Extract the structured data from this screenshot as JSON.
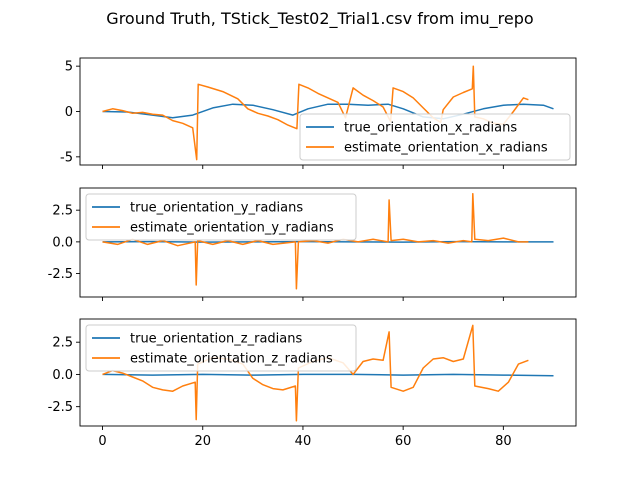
{
  "figure": {
    "title": "Ground Truth, TStick_Test02_Trial1.csv from imu_repo"
  },
  "colors": {
    "true": "#1f77b4",
    "estimate": "#ff7f0e"
  },
  "chart_data": [
    {
      "type": "line",
      "xlim": [
        -4.5,
        94.5
      ],
      "ylim": [
        -5.9,
        5.9
      ],
      "yticks": [
        -5,
        0,
        5
      ],
      "xticks": [
        0,
        20,
        40,
        60,
        80
      ],
      "xtick_labels_visible": false,
      "legend": "lower right",
      "series": [
        {
          "name": "true_orientation_x_radians",
          "color": "#1f77b4",
          "points": [
            [
              0,
              0
            ],
            [
              5,
              -0.05
            ],
            [
              10,
              -0.4
            ],
            [
              14,
              -0.7
            ],
            [
              18,
              -0.4
            ],
            [
              22,
              0.4
            ],
            [
              26,
              0.8
            ],
            [
              30,
              0.7
            ],
            [
              34,
              0.2
            ],
            [
              38,
              -0.4
            ],
            [
              41,
              0.3
            ],
            [
              45,
              0.8
            ],
            [
              49,
              0.8
            ],
            [
              53,
              0.7
            ],
            [
              57,
              0.8
            ],
            [
              60,
              0.3
            ],
            [
              64,
              -0.6
            ],
            [
              68,
              -0.8
            ],
            [
              72,
              -0.3
            ],
            [
              76,
              0.3
            ],
            [
              80,
              0.7
            ],
            [
              84,
              0.8
            ],
            [
              88,
              0.7
            ],
            [
              90,
              0.3
            ]
          ]
        },
        {
          "name": "estimate_orientation_x_radians",
          "color": "#ff7f0e",
          "points": [
            [
              0,
              0
            ],
            [
              2,
              0.3
            ],
            [
              4,
              0.1
            ],
            [
              6,
              -0.2
            ],
            [
              8,
              -0.1
            ],
            [
              10,
              -0.3
            ],
            [
              12,
              -0.4
            ],
            [
              14,
              -1.0
            ],
            [
              16,
              -1.3
            ],
            [
              18,
              -1.8
            ],
            [
              18.8,
              -5.3
            ],
            [
              19.1,
              3.0
            ],
            [
              21,
              2.7
            ],
            [
              24,
              2.2
            ],
            [
              27,
              1.4
            ],
            [
              29,
              0.3
            ],
            [
              31,
              -0.2
            ],
            [
              33,
              -0.5
            ],
            [
              35,
              -0.9
            ],
            [
              37,
              -1.5
            ],
            [
              38.8,
              -1.9
            ],
            [
              39.2,
              3.0
            ],
            [
              41,
              2.6
            ],
            [
              43,
              2.0
            ],
            [
              45,
              1.5
            ],
            [
              47,
              1.0
            ],
            [
              48.5,
              -0.7
            ],
            [
              50,
              2.6
            ],
            [
              52,
              1.8
            ],
            [
              54,
              1.2
            ],
            [
              56,
              0.5
            ],
            [
              57.5,
              -1.1
            ],
            [
              58,
              2.6
            ],
            [
              60,
              2.2
            ],
            [
              62,
              1.5
            ],
            [
              64,
              0.4
            ],
            [
              66,
              -0.7
            ],
            [
              67.5,
              -1.2
            ],
            [
              68,
              0.2
            ],
            [
              70,
              1.6
            ],
            [
              72,
              2.1
            ],
            [
              73.8,
              2.5
            ],
            [
              74,
              5.0
            ],
            [
              74.3,
              -0.6
            ],
            [
              76,
              -0.8
            ],
            [
              78,
              -1.3
            ],
            [
              80,
              -1.4
            ],
            [
              82,
              0.0
            ],
            [
              84,
              1.5
            ],
            [
              85,
              1.3
            ]
          ]
        }
      ]
    },
    {
      "type": "line",
      "xlim": [
        -4.5,
        94.5
      ],
      "ylim": [
        -4.35,
        4.25
      ],
      "yticks": [
        -2.5,
        0.0,
        2.5
      ],
      "xticks": [
        0,
        20,
        40,
        60,
        80
      ],
      "xtick_labels_visible": false,
      "legend": "upper left",
      "series": [
        {
          "name": "true_orientation_y_radians",
          "color": "#1f77b4",
          "points": [
            [
              0,
              0.0
            ],
            [
              10,
              0.02
            ],
            [
              20,
              -0.02
            ],
            [
              30,
              0.0
            ],
            [
              40,
              0.02
            ],
            [
              50,
              0.0
            ],
            [
              60,
              -0.02
            ],
            [
              70,
              0.02
            ],
            [
              80,
              0.0
            ],
            [
              90,
              0.0
            ]
          ]
        },
        {
          "name": "estimate_orientation_y_radians",
          "color": "#ff7f0e",
          "points": [
            [
              0,
              0.0
            ],
            [
              3,
              -0.2
            ],
            [
              6,
              0.2
            ],
            [
              9,
              -0.2
            ],
            [
              12,
              0.1
            ],
            [
              15,
              -0.3
            ],
            [
              18.5,
              0.0
            ],
            [
              18.7,
              -3.4
            ],
            [
              19,
              0.1
            ],
            [
              22,
              -0.2
            ],
            [
              25,
              0.1
            ],
            [
              28,
              -0.2
            ],
            [
              31,
              0.1
            ],
            [
              34,
              -0.2
            ],
            [
              38.5,
              0.0
            ],
            [
              38.7,
              -3.7
            ],
            [
              39.1,
              0.0
            ],
            [
              42,
              0.1
            ],
            [
              45,
              -0.1
            ],
            [
              48,
              0.2
            ],
            [
              51,
              0.0
            ],
            [
              54,
              0.2
            ],
            [
              57,
              0.0
            ],
            [
              57.2,
              3.3
            ],
            [
              57.6,
              0.1
            ],
            [
              60,
              0.2
            ],
            [
              63,
              0.0
            ],
            [
              66,
              0.1
            ],
            [
              69,
              -0.1
            ],
            [
              72,
              0.1
            ],
            [
              73.7,
              0.0
            ],
            [
              73.9,
              3.8
            ],
            [
              74.3,
              0.2
            ],
            [
              77,
              0.1
            ],
            [
              80,
              0.3
            ],
            [
              83,
              0.0
            ],
            [
              85,
              0.0
            ]
          ]
        }
      ]
    },
    {
      "type": "line",
      "xlim": [
        -4.5,
        94.5
      ],
      "ylim": [
        -4.0,
        4.3
      ],
      "yticks": [
        -2.5,
        0.0,
        2.5
      ],
      "xticks": [
        0,
        20,
        40,
        60,
        80
      ],
      "xtick_labels_visible": true,
      "legend": "upper left",
      "series": [
        {
          "name": "true_orientation_z_radians",
          "color": "#1f77b4",
          "points": [
            [
              0,
              0.0
            ],
            [
              10,
              -0.05
            ],
            [
              20,
              0.0
            ],
            [
              30,
              -0.05
            ],
            [
              40,
              0.0
            ],
            [
              50,
              0.0
            ],
            [
              60,
              -0.05
            ],
            [
              70,
              0.0
            ],
            [
              80,
              -0.05
            ],
            [
              90,
              -0.1
            ]
          ]
        },
        {
          "name": "estimate_orientation_z_radians",
          "color": "#ff7f0e",
          "points": [
            [
              0,
              0.0
            ],
            [
              2,
              0.3
            ],
            [
              4,
              0.1
            ],
            [
              6,
              -0.2
            ],
            [
              8,
              -0.5
            ],
            [
              10,
              -1.0
            ],
            [
              12,
              -1.2
            ],
            [
              14,
              -1.3
            ],
            [
              16,
              -0.9
            ],
            [
              18.5,
              -0.6
            ],
            [
              18.7,
              -3.5
            ],
            [
              19,
              0.8
            ],
            [
              22,
              1.3
            ],
            [
              25,
              1.2
            ],
            [
              28,
              0.8
            ],
            [
              30,
              -0.3
            ],
            [
              32,
              -0.8
            ],
            [
              34,
              -1.1
            ],
            [
              36,
              -1.2
            ],
            [
              38.5,
              -0.9
            ],
            [
              38.7,
              -3.6
            ],
            [
              39.1,
              0.5
            ],
            [
              42,
              1.0
            ],
            [
              45,
              1.3
            ],
            [
              48,
              0.9
            ],
            [
              50,
              0.0
            ],
            [
              52,
              1.0
            ],
            [
              54,
              1.2
            ],
            [
              56,
              1.1
            ],
            [
              57.2,
              3.3
            ],
            [
              57.6,
              -1.0
            ],
            [
              60,
              -1.3
            ],
            [
              62,
              -1.0
            ],
            [
              64,
              0.5
            ],
            [
              66,
              1.2
            ],
            [
              68,
              1.3
            ],
            [
              70,
              1.0
            ],
            [
              72,
              1.2
            ],
            [
              73.9,
              3.8
            ],
            [
              74.3,
              -0.9
            ],
            [
              77,
              -1.1
            ],
            [
              79,
              -1.3
            ],
            [
              81,
              -0.6
            ],
            [
              83,
              0.8
            ],
            [
              85,
              1.1
            ]
          ]
        }
      ]
    }
  ]
}
